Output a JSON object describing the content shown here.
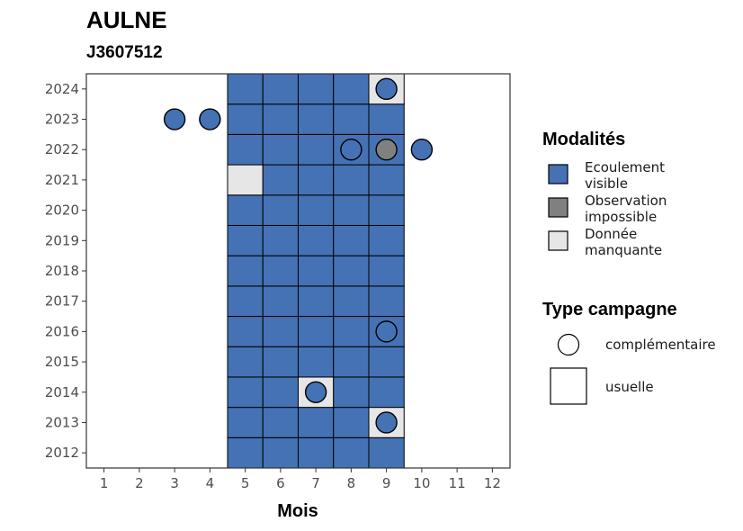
{
  "chart_data": {
    "type": "heatmap",
    "title": "AULNE",
    "subtitle": "J3607512",
    "xlabel": "Mois",
    "ylabel": "",
    "x_ticks": [
      "1",
      "2",
      "3",
      "4",
      "5",
      "6",
      "7",
      "8",
      "9",
      "10",
      "11",
      "12"
    ],
    "y_ticks": [
      "2012",
      "2013",
      "2014",
      "2015",
      "2016",
      "2017",
      "2018",
      "2019",
      "2020",
      "2021",
      "2022",
      "2023",
      "2024"
    ],
    "xlim": [
      0.5,
      12.5
    ],
    "ylim": [
      2011.5,
      2024.5
    ],
    "grid": false,
    "legend_position": "right",
    "colors": {
      "ecoulement_visible": "#4472b4",
      "observation_impossible": "#808080",
      "donnee_manquante": "#e6e6e6",
      "border": "#000000",
      "panel_border": "#333333"
    },
    "legend": {
      "modalites": {
        "title": "Modalités",
        "entries": [
          {
            "key": "ecoulement_visible",
            "line1": "Ecoulement",
            "line2": "visible"
          },
          {
            "key": "observation_impossible",
            "line1": "Observation",
            "line2": "impossible"
          },
          {
            "key": "donnee_manquante",
            "line1": "Donnée",
            "line2": "manquante"
          }
        ]
      },
      "type_campagne": {
        "title": "Type campagne",
        "entries": [
          {
            "shape": "circle",
            "label": "complémentaire"
          },
          {
            "shape": "square",
            "label": "usuelle"
          }
        ]
      }
    },
    "usuelle_months": [
      5,
      6,
      7,
      8,
      9
    ],
    "usuelle_years": [
      2012,
      2024
    ],
    "usuelle_overrides": [
      {
        "year": 2024,
        "month": 9,
        "modalite": "donnee_manquante"
      },
      {
        "year": 2021,
        "month": 5,
        "modalite": "donnee_manquante"
      },
      {
        "year": 2014,
        "month": 7,
        "modalite": "donnee_manquante"
      },
      {
        "year": 2013,
        "month": 9,
        "modalite": "donnee_manquante"
      }
    ],
    "usuelle_default": "ecoulement_visible",
    "complementaire": [
      {
        "year": 2024,
        "month": 9,
        "modalite": "ecoulement_visible"
      },
      {
        "year": 2023,
        "month": 3,
        "modalite": "ecoulement_visible"
      },
      {
        "year": 2023,
        "month": 4,
        "modalite": "ecoulement_visible"
      },
      {
        "year": 2022,
        "month": 8,
        "modalite": "ecoulement_visible"
      },
      {
        "year": 2022,
        "month": 9,
        "modalite": "observation_impossible"
      },
      {
        "year": 2022,
        "month": 10,
        "modalite": "ecoulement_visible"
      },
      {
        "year": 2016,
        "month": 9,
        "modalite": "ecoulement_visible"
      },
      {
        "year": 2014,
        "month": 7,
        "modalite": "ecoulement_visible"
      },
      {
        "year": 2013,
        "month": 9,
        "modalite": "ecoulement_visible"
      }
    ]
  }
}
